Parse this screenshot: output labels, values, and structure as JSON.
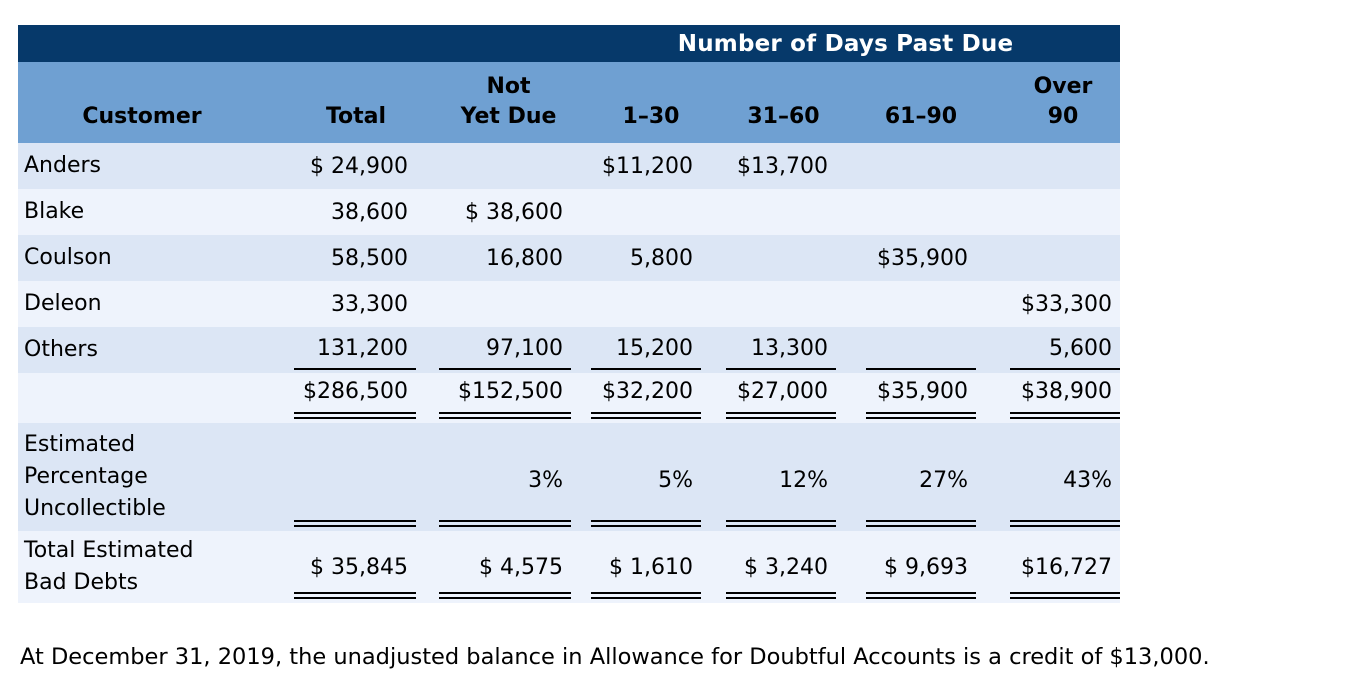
{
  "colors": {
    "navy_band": "#06396A",
    "header_blue": "#6FA0D2",
    "stripe_dark": "#DCE6F5",
    "stripe_light": "#EEF3FC"
  },
  "table": {
    "group_header": "Number of Days Past Due",
    "columns": {
      "customer": "Customer",
      "total": "Total",
      "not_yet_due": "Not\nYet Due",
      "d1_30": "1–30",
      "d31_60": "31–60",
      "d61_90": "61–90",
      "over_90": "Over\n90"
    },
    "rows": [
      {
        "customer": "Anders",
        "total": "$ 24,900",
        "not_yet_due": "",
        "d1_30": "$11,200",
        "d31_60": "$13,700",
        "d61_90": "",
        "over_90": ""
      },
      {
        "customer": "Blake",
        "total": "38,600",
        "not_yet_due": "$ 38,600",
        "d1_30": "",
        "d31_60": "",
        "d61_90": "",
        "over_90": ""
      },
      {
        "customer": "Coulson",
        "total": "58,500",
        "not_yet_due": "16,800",
        "d1_30": "5,800",
        "d31_60": "",
        "d61_90": "$35,900",
        "over_90": ""
      },
      {
        "customer": "Deleon",
        "total": "33,300",
        "not_yet_due": "",
        "d1_30": "",
        "d31_60": "",
        "d61_90": "",
        "over_90": "$33,300"
      },
      {
        "customer": "Others",
        "total": "131,200",
        "not_yet_due": "97,100",
        "d1_30": "15,200",
        "d31_60": "13,300",
        "d61_90": "",
        "over_90": "5,600"
      }
    ],
    "totals_row": {
      "customer": "",
      "total": "$286,500",
      "not_yet_due": "$152,500",
      "d1_30": "$32,200",
      "d31_60": "$27,000",
      "d61_90": "$35,900",
      "over_90": "$38,900"
    },
    "percentage_row": {
      "customer": "Estimated\nPercentage\nUncollectible",
      "total": "",
      "not_yet_due": "3%",
      "d1_30": "5%",
      "d31_60": "12%",
      "d61_90": "27%",
      "over_90": "43%"
    },
    "bad_debts_row": {
      "customer": "Total Estimated\nBad Debts",
      "total": "$ 35,845",
      "not_yet_due": "$ 4,575",
      "d1_30": "$ 1,610",
      "d31_60": "$ 3,240",
      "d61_90": "$ 9,693",
      "over_90": "$16,727"
    }
  },
  "note": "At December 31, 2019, the unadjusted balance in Allowance for Doubtful Accounts is a credit of $13,000."
}
